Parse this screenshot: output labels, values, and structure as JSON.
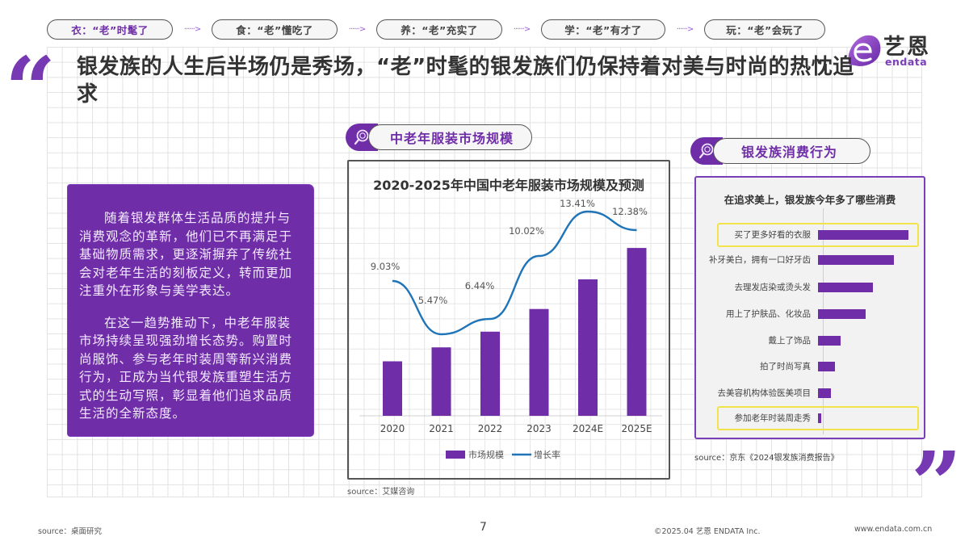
{
  "steps": [
    {
      "label": "衣：“老”时髦了",
      "active": true
    },
    {
      "label": "食：“老”懂吃了",
      "active": false
    },
    {
      "label": "养：“老”充实了",
      "active": false
    },
    {
      "label": "学：“老”有才了",
      "active": false
    },
    {
      "label": "玩：“老”会玩了",
      "active": false
    }
  ],
  "step_arrow": "······>",
  "logo": {
    "cn": "艺恩",
    "en": "endata"
  },
  "quotes": {
    "open": "“",
    "close": "”"
  },
  "headline": "银发族的人生后半场仍是秀场，“老”时髦的银发族们仍保持着对美与时尚的热忱追求",
  "intro_box": {
    "paragraphs": [
      "随着银发群体生活品质的提升与消费观念的革新，他们已不再满足于基础物质需求，更逐渐摒弃了传统社会对老年生活的刻板定义，转而更加注重外在形象与美学表达。",
      "在这一趋势推动下，中老年服装市场持续呈现强劲增长态势。购置时尚服饰、参与老年时装周等新兴消费行为，正成为当代银发族重塑生活方式的生动写照，彰显着他们追求品质生活的全新态度。"
    ]
  },
  "market_section": {
    "pill_label": "中老年服装市场规模",
    "icon": "search-magnifier-icon",
    "source": "source：艾媒咨询"
  },
  "consumer_section": {
    "pill_label": "银发族消费行为",
    "icon": "search-magnifier-icon",
    "source": "source：京东《2024银发族消费报告》"
  },
  "colors": {
    "accent_purple": "#6f2da8",
    "line_blue": "#1f74b8",
    "highlight_yellow": "#f3e34a",
    "grid": "#e2e2e2"
  },
  "chart_data": [
    {
      "type": "bar+line",
      "title": "2020-2025年中国中老年服装市场规模及预测",
      "categories": [
        "2020",
        "2021",
        "2022",
        "2023",
        "2024E",
        "2025E"
      ],
      "series": [
        {
          "name": "市场规模",
          "type": "bar",
          "axis": "left",
          "values": [
            100,
            108,
            117,
            130,
            147,
            165
          ],
          "note": "relative bar heights, no value labels shown"
        },
        {
          "name": "增长率",
          "type": "line",
          "axis": "right",
          "values": [
            9.03,
            5.47,
            6.44,
            10.02,
            13.41,
            12.38
          ],
          "labels": [
            "9.03%",
            "5.47%",
            "6.44%",
            "10.02%",
            "13.41%",
            "12.38%"
          ]
        }
      ],
      "legend": [
        "市场规模",
        "增长率"
      ],
      "legend_position": "bottom",
      "grid": false,
      "xlabel": "",
      "ylabel": ""
    },
    {
      "type": "bar",
      "orientation": "horizontal",
      "title": "在追求美上，银发族今年多了哪些消费",
      "categories": [
        "买了更多好看的衣服",
        "补牙美白，拥有一口好牙齿",
        "去理发店染或烫头发",
        "用上了护肤品、化妆品",
        "戴上了饰品",
        "拍了时尚写真",
        "去美容机构体验医美项目",
        "参加老年时装周走秀"
      ],
      "values": [
        100,
        84,
        61,
        53,
        25,
        19,
        14,
        4
      ],
      "highlighted": [
        "买了更多好看的衣服",
        "参加老年时装周走秀"
      ],
      "note": "relative bar lengths, no value labels shown"
    }
  ],
  "footer": {
    "source": "source：桌面研究",
    "page": "7",
    "copyright": "©2025.04 艺恩 ENDATA Inc.",
    "website": "www.endata.com.cn"
  }
}
